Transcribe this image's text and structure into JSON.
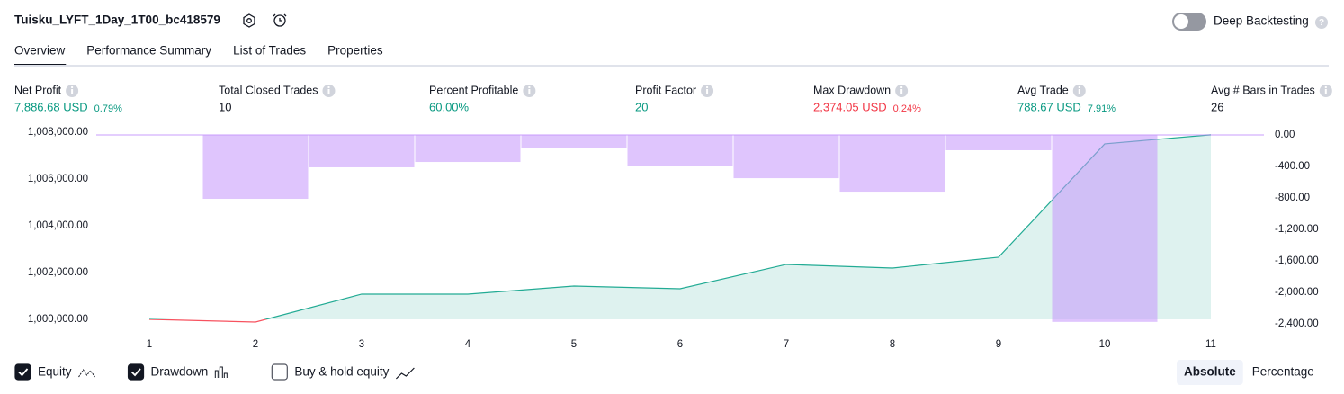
{
  "header": {
    "title": "Tuisku_LYFT_1Day_1T00_bc418579",
    "toggle_label": "Deep Backtesting",
    "toggle_on": false
  },
  "tabs": {
    "items": [
      "Overview",
      "Performance Summary",
      "List of Trades",
      "Properties"
    ],
    "active": 0
  },
  "metrics": [
    {
      "label": "Net Profit",
      "value": "7,886.68 USD",
      "pct": "0.79%",
      "tone": "positive"
    },
    {
      "label": "Total Closed Trades",
      "value": "10",
      "tone": "neutral"
    },
    {
      "label": "Percent Profitable",
      "value": "60.00%",
      "tone": "positive"
    },
    {
      "label": "Profit Factor",
      "value": "20",
      "tone": "positive"
    },
    {
      "label": "Max Drawdown",
      "value": "2,374.05 USD",
      "pct": "0.24%",
      "tone": "negative"
    },
    {
      "label": "Avg Trade",
      "value": "788.67 USD",
      "pct": "7.91%",
      "tone": "positive"
    },
    {
      "label": "Avg # Bars in Trades",
      "value": "26",
      "tone": "neutral"
    }
  ],
  "chart_data": {
    "type": "equity_drawdown",
    "x": [
      1,
      2,
      3,
      4,
      5,
      6,
      7,
      8,
      9,
      10,
      11
    ],
    "xlim": [
      0.5,
      11.5
    ],
    "xticks": [
      1,
      2,
      3,
      4,
      5,
      6,
      7,
      8,
      9,
      10,
      11
    ],
    "ylim": [
      999500,
      1008150
    ],
    "yticks": [
      {
        "value": 1000000,
        "label": "1,000,000.00"
      },
      {
        "value": 1002000,
        "label": "1,002,000.00"
      },
      {
        "value": 1004000,
        "label": "1,004,000.00"
      },
      {
        "value": 1006000,
        "label": "1,006,000.00"
      },
      {
        "value": 1008000,
        "label": "1,008,000.00"
      }
    ],
    "y2lim": [
      -2490,
      80
    ],
    "y2ticks": [
      {
        "value": 0,
        "label": "0.00"
      },
      {
        "value": -400,
        "label": "-400.00"
      },
      {
        "value": -800,
        "label": "-800.00"
      },
      {
        "value": -1200,
        "label": "-1,200.00"
      },
      {
        "value": -1600,
        "label": "-1,600.00"
      },
      {
        "value": -2000,
        "label": "-2,000.00"
      },
      {
        "value": -2400,
        "label": "-2,400.00"
      }
    ],
    "series": [
      {
        "name": "Equity",
        "type": "line",
        "axis": "y",
        "color": "#22ab94",
        "below_color": "#f7525f",
        "visible": true,
        "values": [
          1000000,
          999885,
          1001077,
          1001077,
          1001423,
          1001308,
          1002346,
          1002192,
          1002654,
          1007500,
          1007886.68
        ]
      },
      {
        "name": "Drawdown",
        "type": "bar",
        "axis": "y2",
        "color": "#c495fb",
        "visible": true,
        "values": [
          0,
          -811,
          -411,
          -343,
          -160,
          -389,
          -549,
          -720,
          -194,
          -2374.05,
          0
        ]
      }
    ],
    "extra_legend": [
      {
        "name": "Buy & hold equity",
        "visible": false
      }
    ],
    "scale_modes": {
      "items": [
        "Absolute",
        "Percentage"
      ],
      "active": 0
    }
  }
}
